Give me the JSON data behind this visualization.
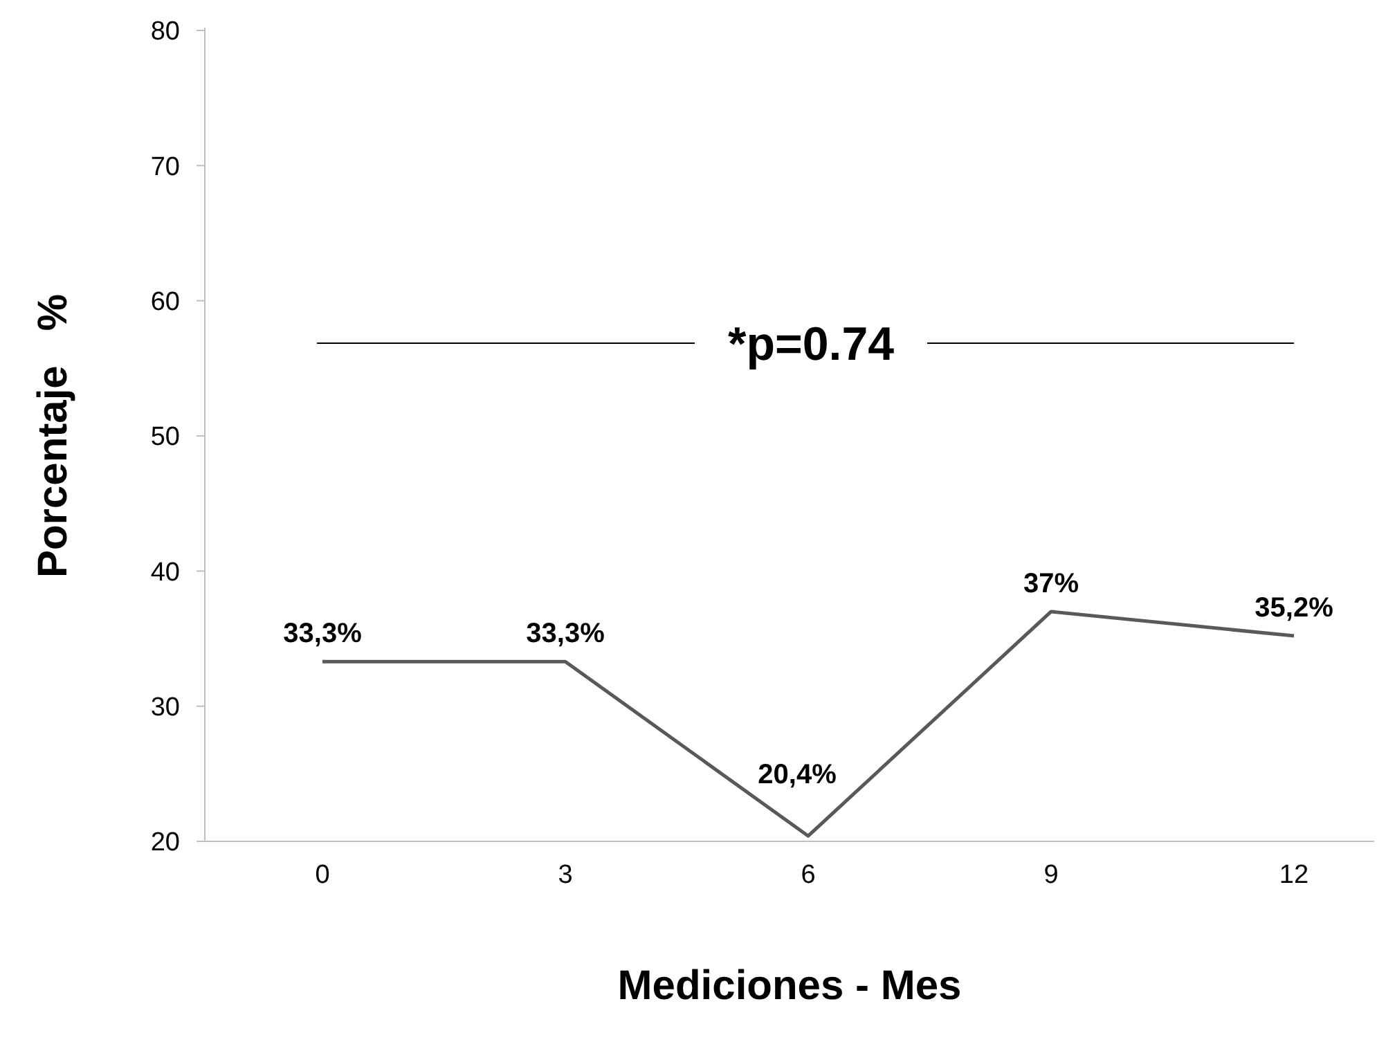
{
  "chart_data": {
    "type": "line",
    "xlabel": "Mediciones - Mes",
    "ylabel": "Porcentaje   %",
    "categories": [
      "0",
      "3",
      "6",
      "9",
      "12"
    ],
    "series": [
      {
        "color": "#595959",
        "values": [
          33.3,
          33.3,
          20.4,
          37,
          35.2
        ],
        "value_labels": [
          "33,3%",
          "33,3%",
          "20,4%",
          "37%",
          "35,2%"
        ]
      }
    ],
    "ylim": [
      20,
      80
    ],
    "yticks": [
      20,
      30,
      40,
      50,
      60,
      70,
      80
    ],
    "grid": false,
    "annotations": [
      "*p=0.74"
    ]
  }
}
